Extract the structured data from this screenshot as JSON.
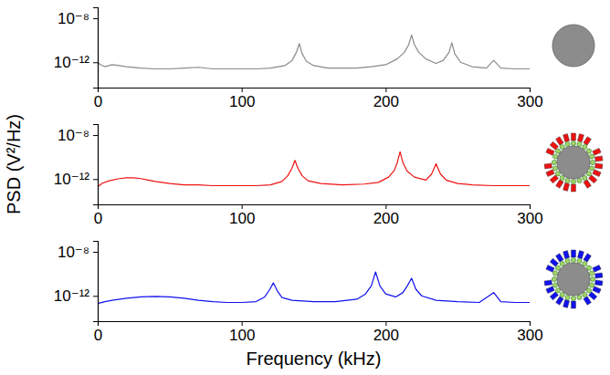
{
  "chart_data": [
    {
      "type": "line",
      "color": "#8a8a8a",
      "log": "y",
      "xlim": [
        0,
        300
      ],
      "xticks": [
        0,
        100,
        200,
        300
      ],
      "ylim": [
        5e-15,
        1e-07
      ],
      "yticks": [
        {
          "value": 1e-08,
          "label": "10⁻⁸"
        },
        {
          "value": 1e-12,
          "label": "10⁻¹²"
        }
      ],
      "x": [
        0,
        2,
        5,
        10,
        15,
        20,
        30,
        40,
        50,
        60,
        70,
        80,
        90,
        100,
        110,
        120,
        130,
        135,
        138,
        140,
        142,
        145,
        150,
        160,
        170,
        180,
        190,
        200,
        208,
        213,
        216,
        218,
        220,
        223,
        228,
        235,
        240,
        244,
        246,
        248,
        252,
        260,
        270,
        275,
        280,
        290,
        300
      ],
      "values": [
        1e-12,
        6e-13,
        4e-13,
        6e-13,
        5e-13,
        4e-13,
        3e-13,
        2.5e-13,
        2.5e-13,
        3e-13,
        3.5e-13,
        2.5e-13,
        2.5e-13,
        2.5e-13,
        2.5e-13,
        3e-13,
        5e-13,
        1.5e-12,
        8e-12,
        5e-11,
        6e-12,
        1.2e-12,
        5e-13,
        3e-13,
        3e-13,
        3e-13,
        4e-13,
        6e-13,
        2e-12,
        8e-12,
        4e-11,
        3e-10,
        4e-11,
        8e-12,
        2e-12,
        8e-13,
        1.5e-12,
        8e-12,
        6e-11,
        6e-12,
        1e-12,
        4e-13,
        3e-13,
        1.5e-12,
        3e-13,
        2.5e-13,
        2.5e-13
      ]
    },
    {
      "type": "line",
      "color": "#ee1111",
      "log": "y",
      "xlim": [
        0,
        300
      ],
      "xticks": [
        0,
        100,
        200,
        300
      ],
      "ylim": [
        5e-15,
        1e-07
      ],
      "yticks": [
        {
          "value": 1e-08,
          "label": "10⁻⁸"
        },
        {
          "value": 1e-12,
          "label": "10⁻¹²"
        }
      ],
      "y_label": "PSD (V²/Hz)",
      "x": [
        0,
        3,
        8,
        15,
        20,
        25,
        30,
        35,
        40,
        50,
        60,
        70,
        80,
        90,
        100,
        110,
        120,
        128,
        132,
        135,
        137,
        139,
        142,
        146,
        155,
        170,
        185,
        195,
        202,
        206,
        208,
        210,
        212,
        215,
        220,
        228,
        232,
        235,
        238,
        242,
        250,
        260,
        275,
        290,
        300
      ],
      "values": [
        2e-13,
        4e-13,
        7e-13,
        1.1e-12,
        1.3e-12,
        1.3e-12,
        1.1e-12,
        8e-13,
        6e-13,
        4e-13,
        3e-13,
        3e-13,
        2.5e-13,
        2.5e-13,
        2.5e-13,
        2.5e-13,
        3e-13,
        6e-13,
        2e-12,
        1e-11,
        5e-11,
        1e-11,
        2e-12,
        7e-13,
        4e-13,
        3e-13,
        3.5e-13,
        5e-13,
        1.5e-12,
        6e-12,
        3e-11,
        3e-10,
        3e-11,
        5e-12,
        1.5e-12,
        8e-13,
        3e-12,
        2.5e-11,
        3e-12,
        8e-13,
        4e-13,
        3e-13,
        2.5e-13,
        2.5e-13,
        2.5e-13
      ]
    },
    {
      "type": "line",
      "color": "#1111ee",
      "log": "y",
      "xlim": [
        0,
        300
      ],
      "xticks": [
        0,
        100,
        200,
        300
      ],
      "ylim": [
        5e-15,
        1e-07
      ],
      "yticks": [
        {
          "value": 1e-08,
          "label": "10⁻⁸"
        },
        {
          "value": 1e-12,
          "label": "10⁻¹²"
        }
      ],
      "x_label": "Frequency (kHz)",
      "x": [
        0,
        5,
        10,
        20,
        30,
        40,
        50,
        60,
        70,
        80,
        90,
        100,
        110,
        116,
        119,
        122,
        125,
        128,
        135,
        150,
        165,
        180,
        186,
        190,
        193,
        196,
        200,
        207,
        212,
        215,
        218,
        221,
        225,
        235,
        250,
        265,
        275,
        280,
        290,
        300
      ],
      "values": [
        2e-13,
        3e-13,
        4e-13,
        6e-13,
        8e-13,
        9e-13,
        8e-13,
        6e-13,
        4e-13,
        3e-13,
        2.5e-13,
        2.5e-13,
        3e-13,
        8e-13,
        3e-12,
        1.5e-11,
        2.5e-12,
        7e-13,
        4e-13,
        3e-13,
        3e-13,
        5e-13,
        1.5e-12,
        8e-12,
        1.5e-10,
        8e-12,
        1.5e-12,
        8e-13,
        2e-12,
        8e-12,
        4e-11,
        4e-12,
        1e-12,
        4e-13,
        3e-13,
        2.5e-13,
        2e-12,
        3e-13,
        2.5e-13,
        2.5e-13
      ]
    }
  ]
}
